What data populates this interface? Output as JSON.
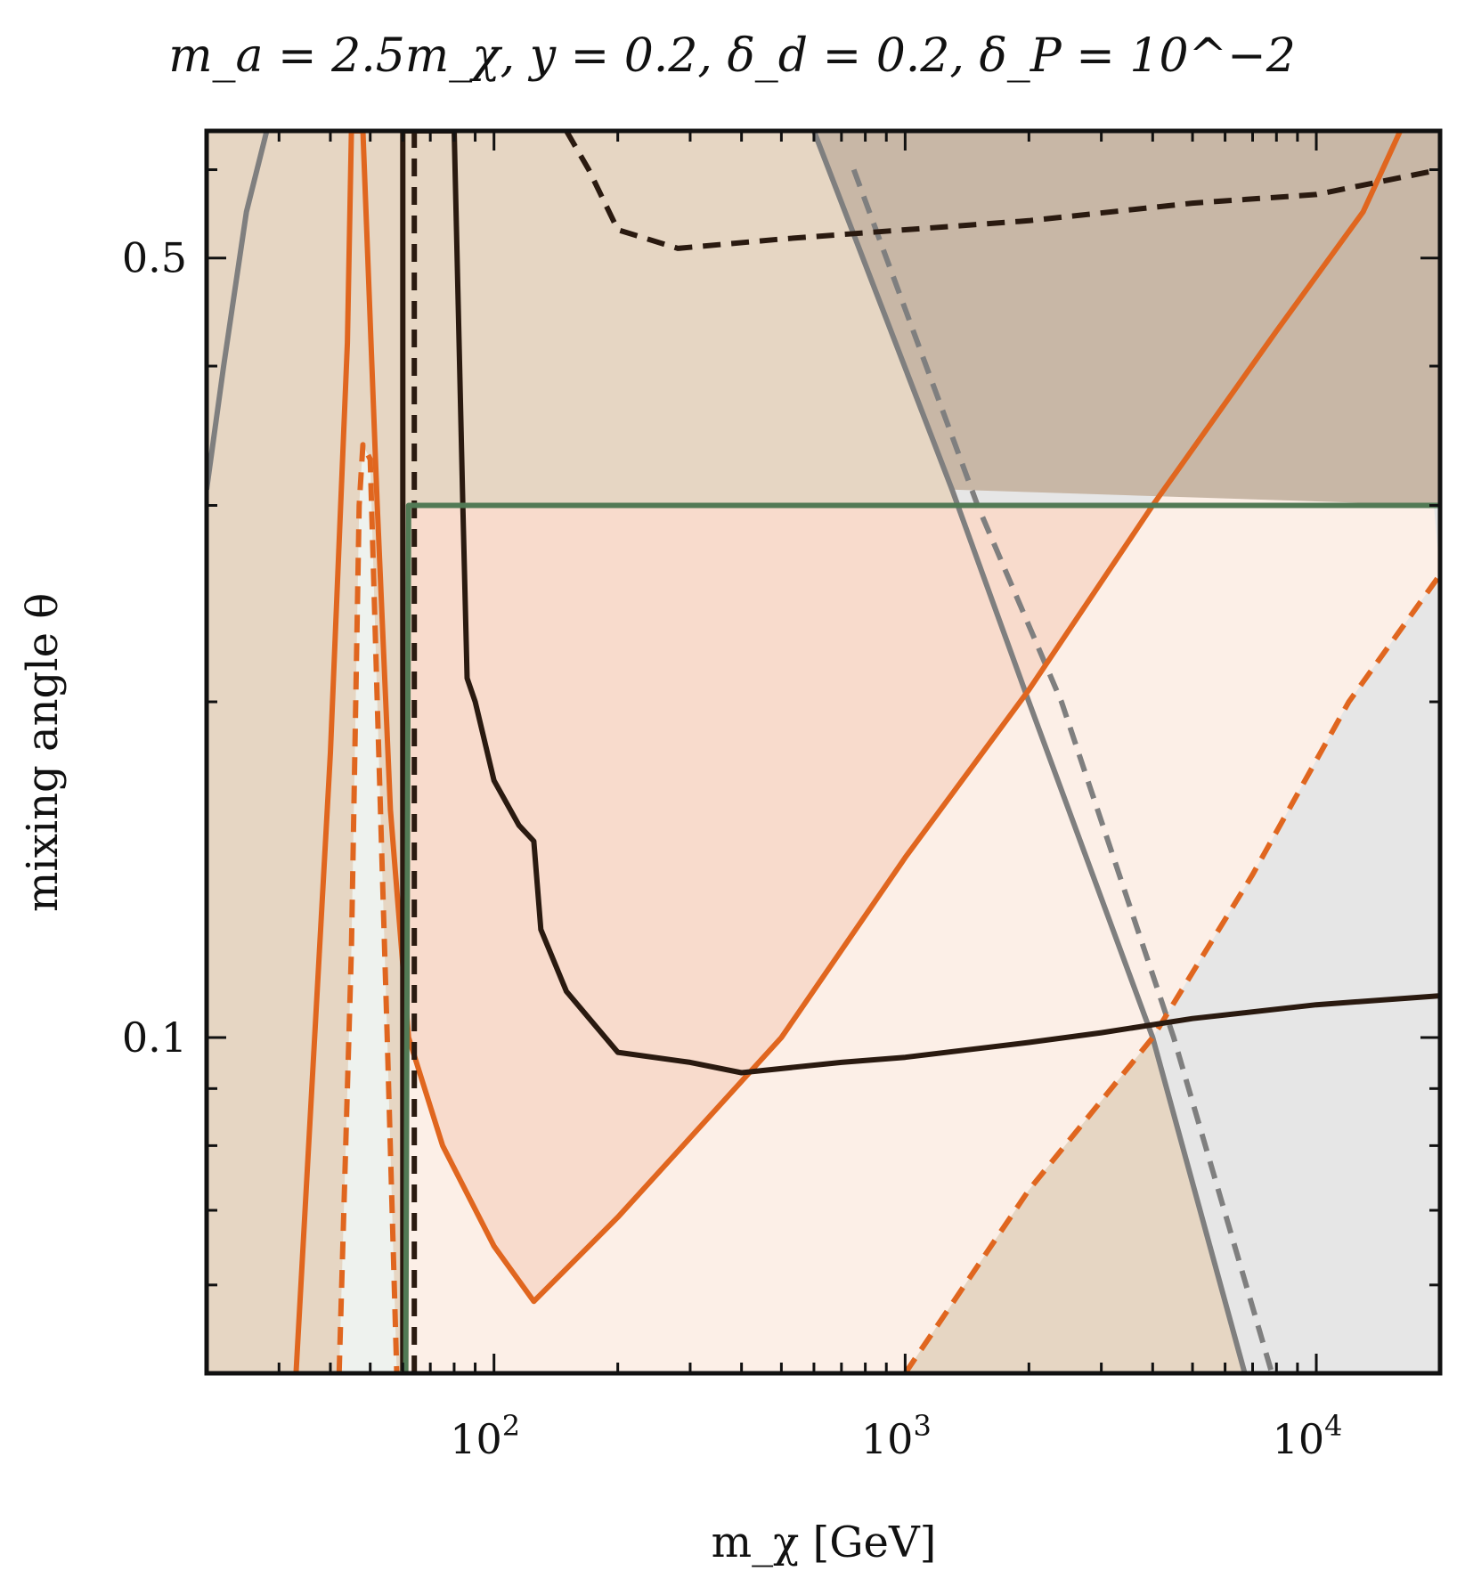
{
  "chart_data": {
    "type": "line",
    "title": "m_a = 2.5m_χ, y = 0.2, δ_d = 0.2, δ_P = 10^−2",
    "xlabel": "m_χ [GeV]",
    "ylabel": "mixing angle θ",
    "xscale": "log",
    "yscale": "log",
    "xlim": [
      20,
      20000
    ],
    "ylim": [
      0.05,
      0.65
    ],
    "grid": false,
    "x_ticks": [
      {
        "value": 100,
        "base": "10",
        "exp": "2"
      },
      {
        "value": 1000,
        "base": "10",
        "exp": "3"
      },
      {
        "value": 10000,
        "base": "10",
        "exp": "4"
      }
    ],
    "y_ticks": [
      {
        "value": 0.1,
        "label": "0.1"
      },
      {
        "value": 0.5,
        "label": "0.5"
      }
    ],
    "colors": {
      "orange": "#e0661f",
      "black": "#2a1a10",
      "gray": "#7f7f7f",
      "green": "#527a55",
      "tan_fill": "#e6d6c3",
      "dark_fill": "#c8b7a6",
      "gray_fill": "#e6e6e6",
      "peach_fill": "#f8dbcc",
      "light_peach_fill": "#fcefe7",
      "mint_fill": "#eef2ee"
    },
    "series": [
      {
        "name": "gray solid (left)",
        "color": "#7f7f7f",
        "style": "solid",
        "points": [
          [
            20,
            0.31
          ],
          [
            22,
            0.4
          ],
          [
            25,
            0.55
          ],
          [
            28,
            0.65
          ]
        ]
      },
      {
        "name": "gray solid (right)",
        "color": "#7f7f7f",
        "style": "solid",
        "points": [
          [
            600,
            0.65
          ],
          [
            1300,
            0.31
          ],
          [
            2000,
            0.2
          ],
          [
            4000,
            0.1
          ],
          [
            6700,
            0.05
          ]
        ]
      },
      {
        "name": "gray dashed",
        "color": "#7f7f7f",
        "style": "dashed",
        "points": [
          [
            750,
            0.6
          ],
          [
            1500,
            0.3
          ],
          [
            2400,
            0.2
          ],
          [
            4500,
            0.1
          ],
          [
            7800,
            0.05
          ]
        ]
      },
      {
        "name": "orange solid",
        "color": "#e0661f",
        "style": "solid",
        "points": [
          [
            33,
            0.05
          ],
          [
            40,
            0.18
          ],
          [
            44,
            0.42
          ],
          [
            45,
            0.65
          ],
          [
            48,
            0.65
          ],
          [
            52,
            0.3
          ],
          [
            56,
            0.16
          ],
          [
            62,
            0.1
          ],
          [
            75,
            0.08
          ],
          [
            100,
            0.065
          ],
          [
            125,
            0.058
          ],
          [
            200,
            0.069
          ],
          [
            500,
            0.1
          ],
          [
            1000,
            0.145
          ],
          [
            2000,
            0.205
          ],
          [
            4000,
            0.3
          ],
          [
            8000,
            0.43
          ],
          [
            13000,
            0.55
          ],
          [
            16000,
            0.65
          ]
        ]
      },
      {
        "name": "orange dashed",
        "color": "#e0661f",
        "style": "dashed",
        "points": [
          [
            42,
            0.05
          ],
          [
            45,
            0.12
          ],
          [
            47,
            0.3
          ],
          [
            48,
            0.34
          ],
          [
            50,
            0.33
          ],
          [
            52,
            0.2
          ],
          [
            55,
            0.1
          ],
          [
            58,
            0.05
          ]
        ]
      },
      {
        "name": "orange dashed (right)",
        "color": "#e0661f",
        "style": "dashed",
        "points": [
          [
            1000,
            0.05
          ],
          [
            2000,
            0.073
          ],
          [
            4000,
            0.1
          ],
          [
            7000,
            0.14
          ],
          [
            12000,
            0.2
          ],
          [
            20000,
            0.26
          ]
        ]
      },
      {
        "name": "black solid",
        "color": "#2a1a10",
        "style": "solid",
        "points": [
          [
            60,
            0.05
          ],
          [
            60,
            0.65
          ],
          [
            80,
            0.65
          ],
          [
            84,
            0.3
          ],
          [
            86,
            0.21
          ],
          [
            90,
            0.2
          ],
          [
            100,
            0.17
          ],
          [
            115,
            0.155
          ],
          [
            125,
            0.15
          ],
          [
            130,
            0.125
          ],
          [
            150,
            0.11
          ],
          [
            200,
            0.097
          ],
          [
            300,
            0.095
          ],
          [
            400,
            0.093
          ],
          [
            700,
            0.095
          ],
          [
            1000,
            0.096
          ],
          [
            2000,
            0.099
          ],
          [
            3000,
            0.101
          ],
          [
            5000,
            0.104
          ],
          [
            10000,
            0.107
          ],
          [
            20000,
            0.109
          ]
        ]
      },
      {
        "name": "black dashed (vertical)",
        "color": "#2a1a10",
        "style": "dashed",
        "points": [
          [
            64,
            0.05
          ],
          [
            64,
            0.65
          ]
        ]
      },
      {
        "name": "black dashed (upper)",
        "color": "#2a1a10",
        "style": "dashed",
        "points": [
          [
            150,
            0.65
          ],
          [
            170,
            0.6
          ],
          [
            200,
            0.53
          ],
          [
            280,
            0.51
          ],
          [
            500,
            0.52
          ],
          [
            1000,
            0.53
          ],
          [
            2000,
            0.54
          ],
          [
            5000,
            0.56
          ],
          [
            10000,
            0.57
          ],
          [
            20000,
            0.6
          ]
        ]
      },
      {
        "name": "green solid",
        "color": "#527a55",
        "style": "solid",
        "points": [
          [
            59,
            0.05
          ],
          [
            61,
            0.05
          ],
          [
            62,
            0.3
          ],
          [
            20000,
            0.3
          ]
        ]
      }
    ],
    "regions": [
      {
        "name": "tan excluded region",
        "color": "#e6d6c3"
      },
      {
        "name": "dark excluded region",
        "color": "#c8b7a6"
      },
      {
        "name": "gray excluded region",
        "color": "#e6e6e6"
      },
      {
        "name": "peach region",
        "color": "#f8dbcc"
      },
      {
        "name": "light peach region",
        "color": "#fcefe7"
      },
      {
        "name": "mint region",
        "color": "#eef2ee"
      }
    ]
  }
}
